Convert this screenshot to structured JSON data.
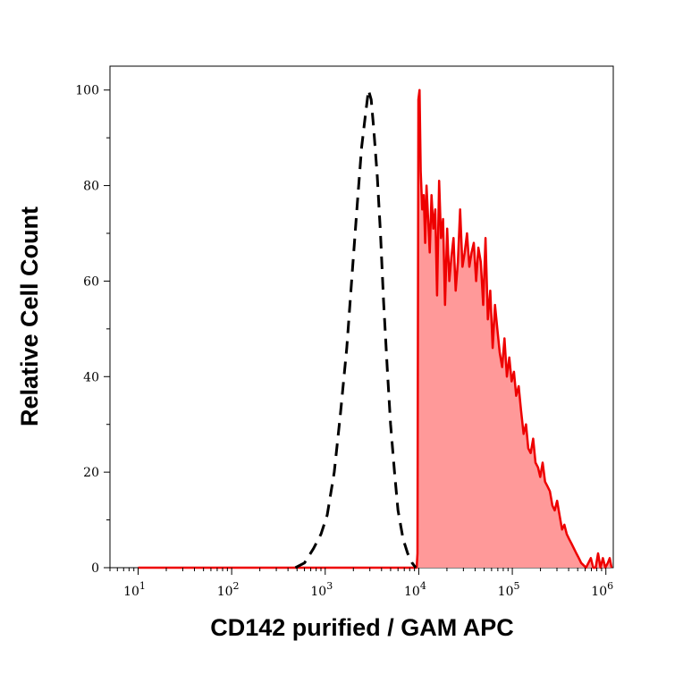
{
  "chart_data": {
    "type": "area",
    "xlabel": "CD142 purified / GAM APC",
    "ylabel": "Relative Cell Count",
    "x_scale": "log",
    "xlim": [
      5,
      1200000
    ],
    "ylim": [
      0,
      105
    ],
    "x_ticks": [
      {
        "value": 10,
        "base": "10",
        "exp": "1"
      },
      {
        "value": 100,
        "base": "10",
        "exp": "2"
      },
      {
        "value": 1000,
        "base": "10",
        "exp": "3"
      },
      {
        "value": 10000,
        "base": "10",
        "exp": "4"
      },
      {
        "value": 100000,
        "base": "10",
        "exp": "5"
      },
      {
        "value": 1000000,
        "base": "10",
        "exp": "6"
      }
    ],
    "y_ticks": [
      {
        "value": 0,
        "label": "0"
      },
      {
        "value": 20,
        "label": "20"
      },
      {
        "value": 40,
        "label": "40"
      },
      {
        "value": 60,
        "label": "60"
      },
      {
        "value": 80,
        "label": "80"
      },
      {
        "value": 100,
        "label": "100"
      }
    ],
    "grid": false,
    "legend": "none",
    "series": [
      {
        "style": "dashed black line",
        "color": "#000000",
        "x": [
          480,
          600,
          750,
          900,
          1050,
          1250,
          1450,
          1700,
          1950,
          2200,
          2450,
          2700,
          2900,
          3100,
          3300,
          3600,
          3900,
          4200,
          4600,
          5000,
          5500,
          6000,
          6800,
          7600,
          8500,
          9300
        ],
        "y": [
          0,
          1,
          4,
          7,
          11,
          20,
          32,
          46,
          62,
          76,
          88,
          95,
          100,
          98,
          92,
          82,
          70,
          56,
          42,
          30,
          20,
          12,
          6,
          3,
          1,
          0
        ]
      },
      {
        "style": "filled red histogram",
        "color": "#ee0000",
        "fill": "#ff9999",
        "x": [
          10,
          100,
          1000,
          9500,
          9700,
          9900,
          10200,
          10500,
          10900,
          11300,
          11700,
          12100,
          12600,
          13100,
          13700,
          14300,
          15000,
          15700,
          16500,
          17300,
          18200,
          19100,
          20100,
          21200,
          22300,
          23500,
          24800,
          26200,
          27700,
          29300,
          31000,
          32800,
          34700,
          36700,
          38800,
          41000,
          43400,
          46000,
          48800,
          51700,
          54800,
          58100,
          61600,
          65300,
          69200,
          73400,
          77800,
          82500,
          87500,
          92800,
          98400,
          104000,
          110000,
          117000,
          124000,
          132000,
          140000,
          148000,
          157000,
          167000,
          177000,
          188000,
          199000,
          211000,
          224000,
          238000,
          252000,
          268000,
          284000,
          301000,
          320000,
          340000,
          360000,
          382000,
          405000,
          430000,
          456000,
          484000,
          514000,
          545000,
          578000,
          614000,
          651000,
          691000,
          733000,
          778000,
          826000,
          876000,
          930000,
          987000,
          1050000,
          1100000,
          1150000
        ],
        "y": [
          0,
          0,
          0,
          0,
          3,
          98,
          100,
          83,
          75,
          78,
          68,
          80,
          73,
          66,
          78,
          71,
          75,
          57,
          81,
          69,
          73,
          55,
          71,
          60,
          65,
          69,
          58,
          64,
          75,
          63,
          66,
          70,
          63,
          66,
          68,
          60,
          67,
          64,
          55,
          69,
          52,
          58,
          46,
          55,
          50,
          45,
          42,
          48,
          40,
          44,
          39,
          41,
          36,
          38,
          33,
          28,
          30,
          25,
          24,
          27,
          22,
          21,
          19,
          22,
          18,
          17,
          16,
          13,
          12,
          14,
          11,
          8,
          9,
          7,
          6,
          5,
          4,
          3,
          2,
          1,
          0.5,
          0,
          1,
          2,
          0,
          0,
          3,
          0,
          2,
          0,
          1,
          2,
          0
        ]
      }
    ]
  }
}
